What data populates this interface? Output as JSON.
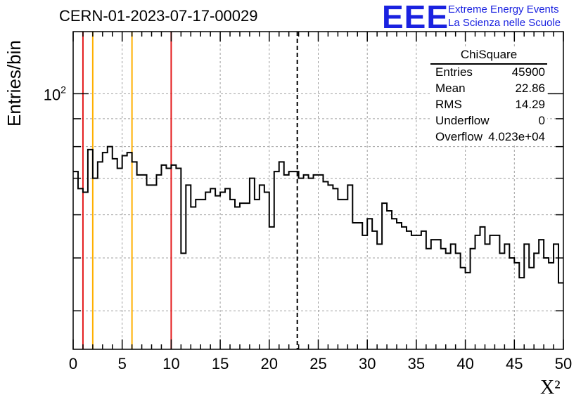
{
  "title": "CERN-01-2023-07-17-00029",
  "logo": {
    "text": "EEE",
    "line1": "Extreme Energy Events",
    "line2": "La Scienza nelle Scuole"
  },
  "stats": {
    "title": "ChiSquare",
    "rows": [
      {
        "key": "Entries",
        "value": "45900"
      },
      {
        "key": "Mean",
        "value": "22.86"
      },
      {
        "key": "RMS",
        "value": "14.29"
      },
      {
        "key": "Underflow",
        "value": "0"
      },
      {
        "key": "Overflow",
        "value": "4.023e+04"
      }
    ]
  },
  "colors": {
    "red_line": "#e41a1c",
    "orange_line": "#ffb000",
    "axis": "#000000",
    "grid": "#a0a0a0"
  },
  "chart_data": {
    "type": "histogram",
    "xlabel": "X²",
    "ylabel": "Entries/bin",
    "xlim": [
      0,
      50
    ],
    "ylim": [
      34,
      130
    ],
    "yscale": "log",
    "grid": true,
    "bin_width": 0.5,
    "x_ticks": [
      0,
      5,
      10,
      15,
      20,
      25,
      30,
      35,
      40,
      45,
      50
    ],
    "y_ticks": [
      100
    ],
    "y_tick_label_base": "10",
    "y_tick_label_exp": "2",
    "vertical_lines": [
      {
        "x": 1.0,
        "color": "red"
      },
      {
        "x": 2.0,
        "color": "orange"
      },
      {
        "x": 6.0,
        "color": "orange"
      },
      {
        "x": 10.0,
        "color": "red"
      },
      {
        "x": 22.86,
        "color": "black",
        "style": "dashed"
      }
    ],
    "counts": [
      72,
      67,
      66,
      79,
      70,
      75,
      78,
      80,
      76,
      73,
      77,
      78,
      75,
      71,
      71,
      68,
      68,
      71,
      74,
      73,
      74,
      73,
      51,
      68,
      62,
      64,
      64,
      66,
      67,
      65,
      66,
      67,
      64,
      62,
      63,
      63,
      70,
      64,
      68,
      66,
      57,
      72,
      75,
      71,
      72,
      72,
      70,
      71,
      70,
      71,
      71,
      69,
      68,
      67,
      64,
      64,
      68,
      58,
      58,
      55,
      59,
      56,
      53,
      63,
      61,
      59,
      58,
      57,
      56,
      55,
      55,
      56,
      52,
      54,
      54,
      52,
      51,
      53,
      51,
      48,
      47,
      52,
      55,
      57,
      53,
      55,
      55,
      51,
      53,
      50,
      49,
      46,
      53,
      48,
      51,
      54,
      50,
      49,
      53,
      45
    ]
  }
}
